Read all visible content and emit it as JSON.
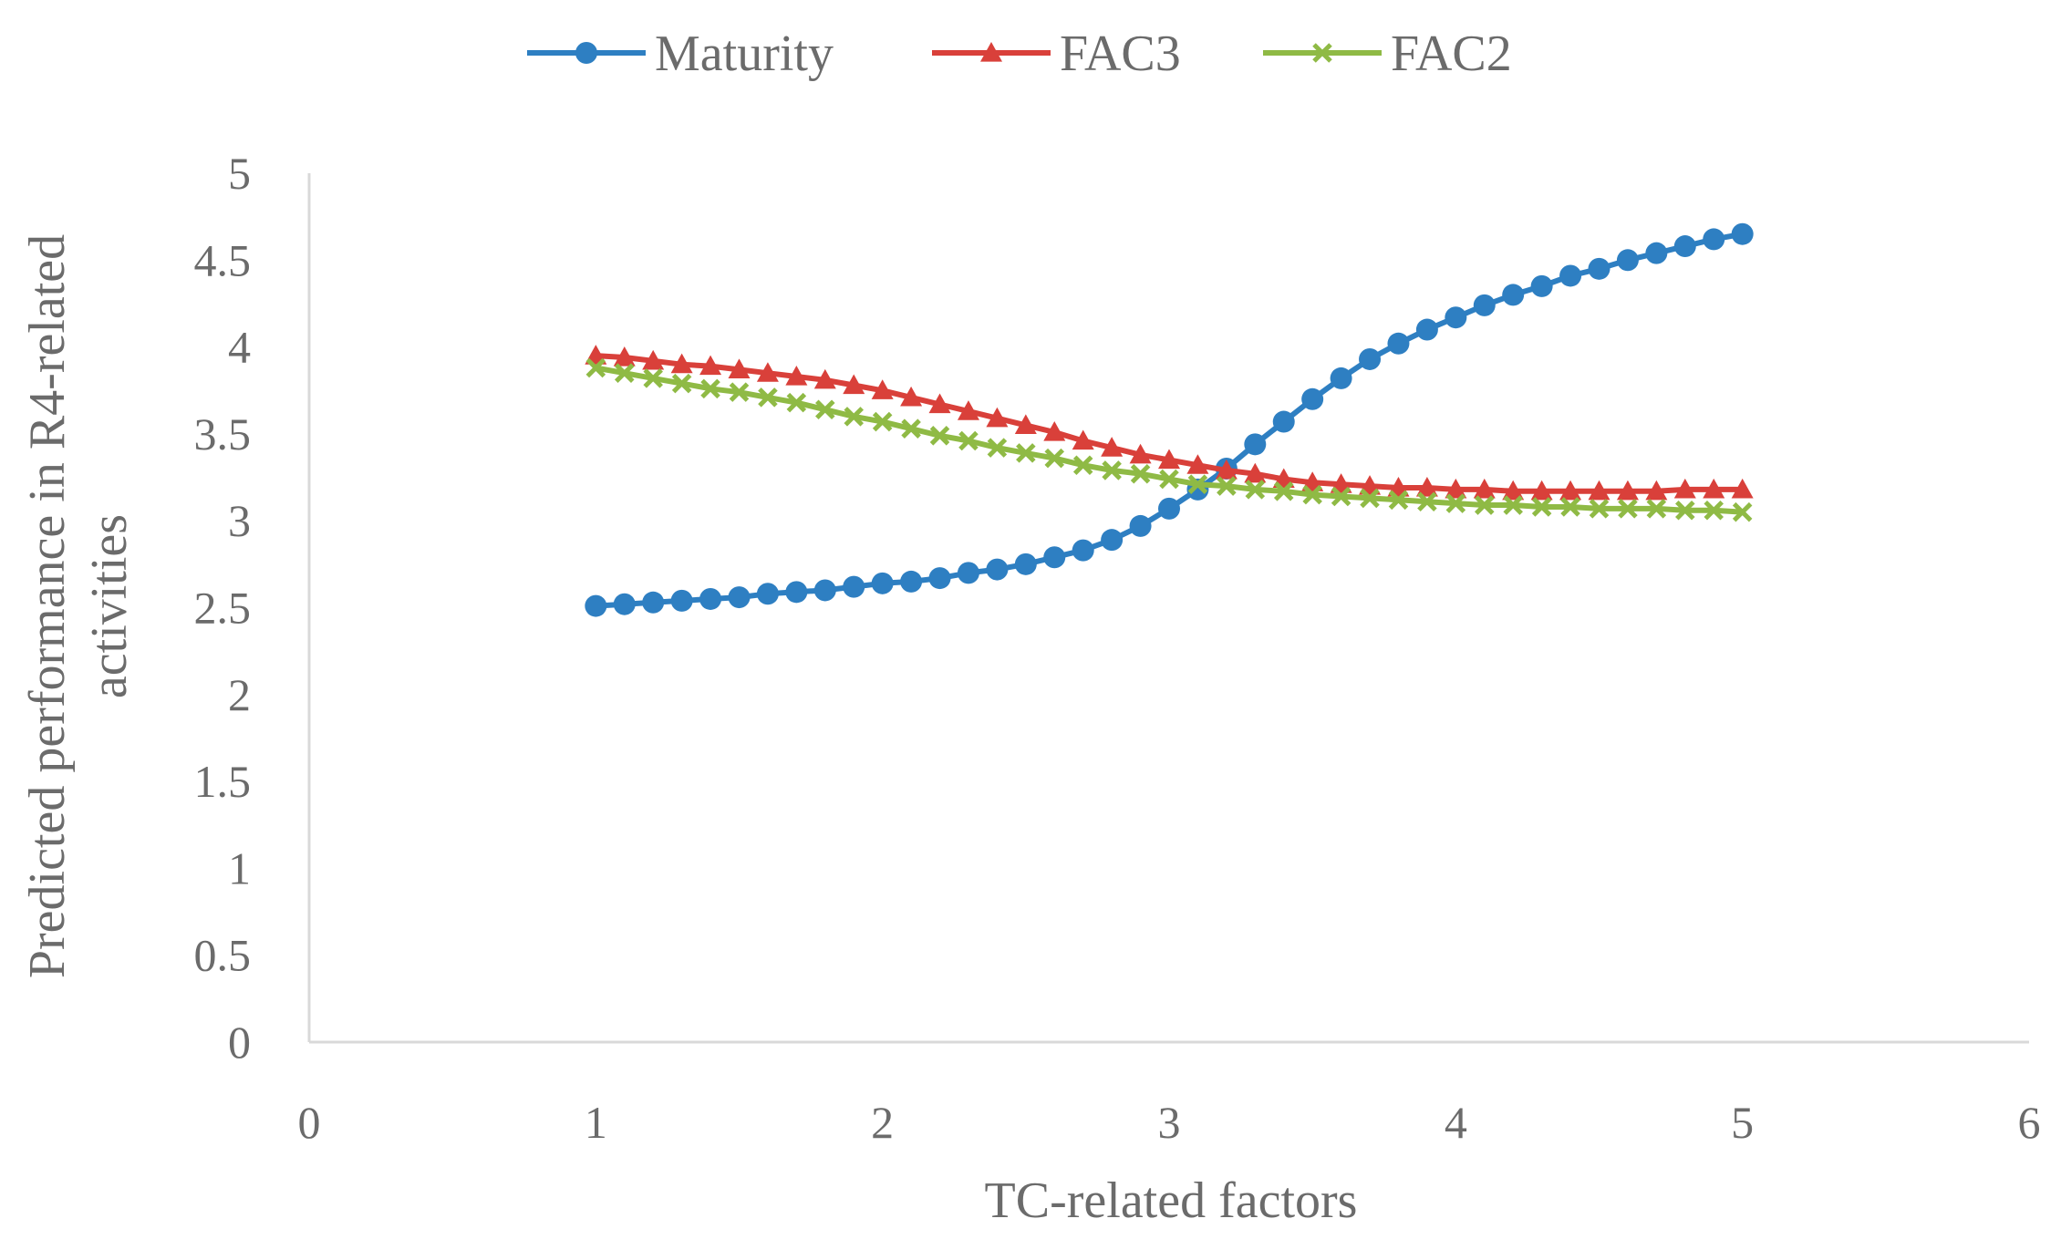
{
  "chart_data": {
    "type": "line",
    "title": "",
    "xlabel": "TC-related factors",
    "ylabel_lines": [
      "Predicted performance in R4-related",
      "activities"
    ],
    "xlim": [
      0,
      6
    ],
    "ylim": [
      0,
      5
    ],
    "x_ticks": [
      "0",
      "1",
      "2",
      "3",
      "4",
      "5",
      "6"
    ],
    "y_ticks": [
      "0",
      "0.5",
      "1",
      "1.5",
      "2",
      "2.5",
      "3",
      "3.5",
      "4",
      "4.5",
      "5"
    ],
    "legend_position": "top-center",
    "grid": false,
    "x": [
      1.0,
      1.1,
      1.2,
      1.3,
      1.4,
      1.5,
      1.6,
      1.7,
      1.8,
      1.9,
      2.0,
      2.1,
      2.2,
      2.3,
      2.4,
      2.5,
      2.6,
      2.7,
      2.8,
      2.9,
      3.0,
      3.1,
      3.2,
      3.3,
      3.4,
      3.5,
      3.6,
      3.7,
      3.8,
      3.9,
      4.0,
      4.1,
      4.2,
      4.3,
      4.4,
      4.5,
      4.6,
      4.7,
      4.8,
      4.9,
      5.0
    ],
    "series": [
      {
        "name": "Maturity",
        "color": "#2e7fc2",
        "marker": "circle",
        "values": [
          2.51,
          2.52,
          2.53,
          2.54,
          2.55,
          2.56,
          2.58,
          2.59,
          2.6,
          2.62,
          2.64,
          2.65,
          2.67,
          2.7,
          2.72,
          2.75,
          2.79,
          2.83,
          2.89,
          2.97,
          3.07,
          3.18,
          3.3,
          3.44,
          3.57,
          3.7,
          3.82,
          3.93,
          4.02,
          4.1,
          4.17,
          4.24,
          4.3,
          4.35,
          4.41,
          4.45,
          4.5,
          4.54,
          4.58,
          4.62,
          4.65
        ]
      },
      {
        "name": "FAC3",
        "color": "#d9403a",
        "marker": "triangle",
        "values": [
          3.95,
          3.94,
          3.92,
          3.9,
          3.89,
          3.87,
          3.85,
          3.83,
          3.81,
          3.78,
          3.75,
          3.71,
          3.67,
          3.63,
          3.59,
          3.55,
          3.51,
          3.46,
          3.42,
          3.38,
          3.35,
          3.32,
          3.29,
          3.27,
          3.24,
          3.22,
          3.21,
          3.2,
          3.19,
          3.19,
          3.18,
          3.18,
          3.17,
          3.17,
          3.17,
          3.17,
          3.17,
          3.17,
          3.18,
          3.18,
          3.18
        ]
      },
      {
        "name": "FAC2",
        "color": "#8fba45",
        "marker": "x",
        "values": [
          3.88,
          3.85,
          3.82,
          3.79,
          3.76,
          3.74,
          3.71,
          3.68,
          3.64,
          3.6,
          3.57,
          3.53,
          3.49,
          3.46,
          3.42,
          3.39,
          3.36,
          3.32,
          3.29,
          3.27,
          3.24,
          3.21,
          3.2,
          3.18,
          3.17,
          3.15,
          3.14,
          3.13,
          3.12,
          3.11,
          3.1,
          3.09,
          3.09,
          3.08,
          3.08,
          3.07,
          3.07,
          3.07,
          3.06,
          3.06,
          3.05
        ]
      }
    ]
  }
}
